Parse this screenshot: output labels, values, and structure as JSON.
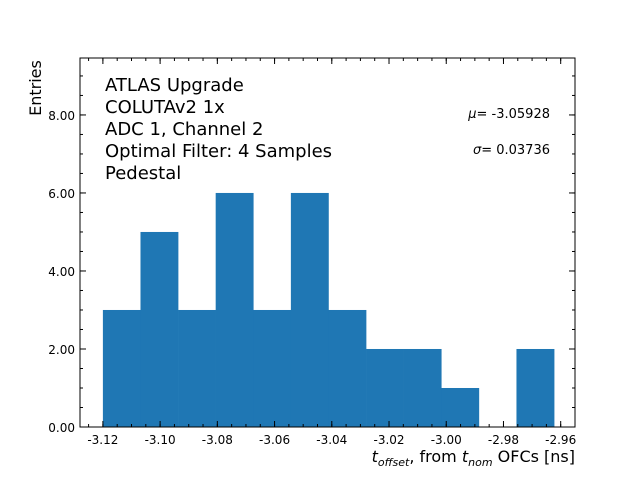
{
  "chart_data": {
    "type": "bar",
    "histogram": true,
    "bin_edges": [
      -3.12,
      -3.10686,
      -3.09372,
      -3.08058,
      -3.06744,
      -3.0543,
      -3.04116,
      -3.02802,
      -3.01488,
      -3.00174,
      -2.9886,
      -2.97546,
      -2.9623
    ],
    "values": [
      3,
      5,
      3,
      6,
      3,
      6,
      3,
      2,
      2,
      1,
      0,
      2
    ],
    "color": "#1f77b4",
    "xlabel_parts": {
      "t1": "t",
      "sub1": "offset",
      "mid": ", from ",
      "t2": "t",
      "sub2": "nom",
      "tail": " OFCs [ns]"
    },
    "ylabel": "Entries",
    "xlim": [
      -3.128,
      -2.955
    ],
    "ylim": [
      0,
      9.46
    ],
    "xticks": [
      "-3.12",
      "-3.10",
      "-3.08",
      "-3.06",
      "-3.04",
      "-3.02",
      "-3.00",
      "-2.98",
      "-2.96"
    ],
    "yticks": [
      "0.00",
      "2.00",
      "4.00",
      "6.00",
      "8.00"
    ],
    "grid": false,
    "annotations": [
      "ATLAS Upgrade",
      "COLUTAv2 1x",
      "ADC 1, Channel 2",
      "Optimal Filter: 4 Samples",
      "Pedestal"
    ],
    "stats": {
      "mu_label": "μ",
      "mu": "= -3.05928",
      "sigma_label": "σ",
      "sigma": "= 0.03736"
    }
  }
}
